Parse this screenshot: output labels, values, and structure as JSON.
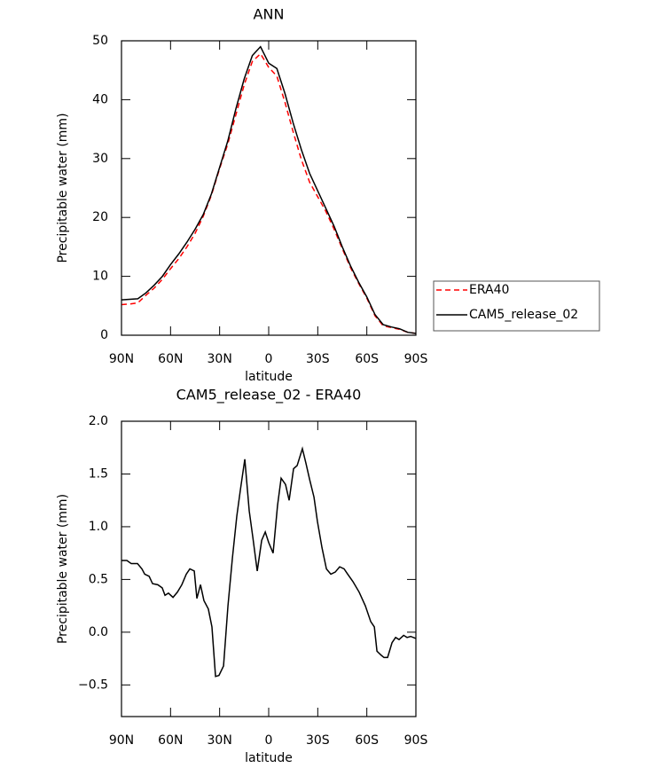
{
  "chart_data": [
    {
      "type": "line",
      "title": "ANN",
      "xlabel": "latitude",
      "ylabel": "Precipitable water (mm)",
      "xlim": [
        90,
        -90
      ],
      "xticks": [
        {
          "value": 90,
          "label": "90N"
        },
        {
          "value": 60,
          "label": "60N"
        },
        {
          "value": 30,
          "label": "30N"
        },
        0,
        {
          "value": -30,
          "label": "30S"
        },
        {
          "value": -60,
          "label": "60S"
        },
        {
          "value": -90,
          "label": "90S"
        }
      ],
      "ylim": [
        0,
        50
      ],
      "yticks": [
        0,
        10,
        20,
        30,
        40,
        50
      ],
      "legend": "right",
      "x": [
        90,
        85,
        80,
        75,
        70,
        65,
        60,
        55,
        50,
        45,
        40,
        35,
        30,
        25,
        20,
        15,
        10,
        5,
        0,
        -5,
        -10,
        -15,
        -20,
        -25,
        -30,
        -35,
        -40,
        -45,
        -50,
        -55,
        -60,
        -65,
        -70,
        -75,
        -80,
        -85,
        -90
      ],
      "series": [
        {
          "name": "ERA40",
          "color": "#ff0000",
          "linestyle": "dashed",
          "values": [
            5.2,
            5.3,
            5.5,
            6.8,
            8,
            9.5,
            11.3,
            13,
            15,
            17.3,
            20.2,
            23.8,
            28.3,
            32.5,
            37.5,
            42.5,
            46.5,
            47.8,
            45.5,
            44,
            39.5,
            34.5,
            29.8,
            26,
            23.5,
            21,
            18,
            14.7,
            11.5,
            8.8,
            6.3,
            3.3,
            1.6,
            1.3,
            1.0,
            0.5,
            0.3
          ]
        },
        {
          "name": "CAM5_release_02",
          "color": "#000000",
          "linestyle": "solid",
          "values": [
            6,
            6.1,
            6.2,
            7.2,
            8.5,
            10,
            12,
            13.8,
            15.8,
            18,
            20.5,
            24,
            28.5,
            33,
            38.5,
            43.5,
            47.5,
            49,
            46.2,
            45.3,
            41,
            36,
            31.5,
            27.5,
            24.5,
            21.5,
            18.5,
            15,
            11.8,
            9,
            6.5,
            3.5,
            1.8,
            1.4,
            1.1,
            0.5,
            0.3
          ]
        }
      ]
    },
    {
      "type": "line",
      "title": "CAM5_release_02 - ERA40",
      "xlabel": "latitude",
      "ylabel": "Precipitable water (mm)",
      "xlim": [
        90,
        -90
      ],
      "xticks": [
        {
          "value": 90,
          "label": "90N"
        },
        {
          "value": 60,
          "label": "60N"
        },
        {
          "value": 30,
          "label": "30N"
        },
        0,
        {
          "value": -30,
          "label": "30S"
        },
        {
          "value": -60,
          "label": "60S"
        },
        {
          "value": -90,
          "label": "90S"
        }
      ],
      "ylim": [
        -0.8,
        2.0
      ],
      "yticks": [
        {
          "value": -0.5,
          "label": "−0.5"
        },
        {
          "value": 0,
          "label": "0.0"
        },
        0.5,
        {
          "value": 1,
          "label": "1.0"
        },
        1.5,
        {
          "value": 2,
          "label": "2.0"
        }
      ],
      "x": [
        90,
        86.7,
        84.0,
        80.2,
        77.5,
        75.8,
        73.1,
        71.0,
        67.8,
        65.1,
        63.4,
        61.3,
        58.5,
        55.8,
        53.1,
        50.4,
        48.2,
        45.5,
        43.9,
        41.7,
        39.6,
        36.9,
        34.7,
        32.5,
        30.4,
        27.6,
        24.9,
        22.2,
        19.5,
        17.3,
        14.6,
        11.9,
        9.7,
        7.0,
        4.3,
        2.1,
        0,
        -2.7,
        -5.4,
        -7.6,
        -10.3,
        -12.5,
        -15.2,
        -17.4,
        -20.6,
        -22.8,
        -25.0,
        -27.7,
        -29.8,
        -32.6,
        -35.3,
        -38.0,
        -40.7,
        -43.4,
        -46.1,
        -48.3,
        -51.5,
        -55.3,
        -59.1,
        -62.4,
        -64.6,
        -66.2,
        -68.9,
        -70.5,
        -72.7,
        -75.4,
        -77.6,
        -79.7,
        -82.5,
        -84.6,
        -86.8,
        -90
      ],
      "series": [
        {
          "color": "#000000",
          "linestyle": "solid",
          "values": [
            0.68,
            0.68,
            0.65,
            0.65,
            0.6,
            0.55,
            0.53,
            0.46,
            0.45,
            0.42,
            0.35,
            0.37,
            0.33,
            0.38,
            0.45,
            0.55,
            0.6,
            0.58,
            0.32,
            0.45,
            0.3,
            0.22,
            0.05,
            -0.42,
            -0.41,
            -0.32,
            0.25,
            0.7,
            1.1,
            1.35,
            1.64,
            1.15,
            0.9,
            0.58,
            0.87,
            0.95,
            0.85,
            0.75,
            1.2,
            1.46,
            1.4,
            1.25,
            1.55,
            1.58,
            1.74,
            1.6,
            1.45,
            1.28,
            1.05,
            0.8,
            0.6,
            0.55,
            0.57,
            0.62,
            0.6,
            0.55,
            0.48,
            0.38,
            0.25,
            0.1,
            0.05,
            -0.18,
            -0.22,
            -0.24,
            -0.24,
            -0.1,
            -0.05,
            -0.07,
            -0.03,
            -0.05,
            -0.04,
            -0.06
          ]
        }
      ]
    }
  ]
}
